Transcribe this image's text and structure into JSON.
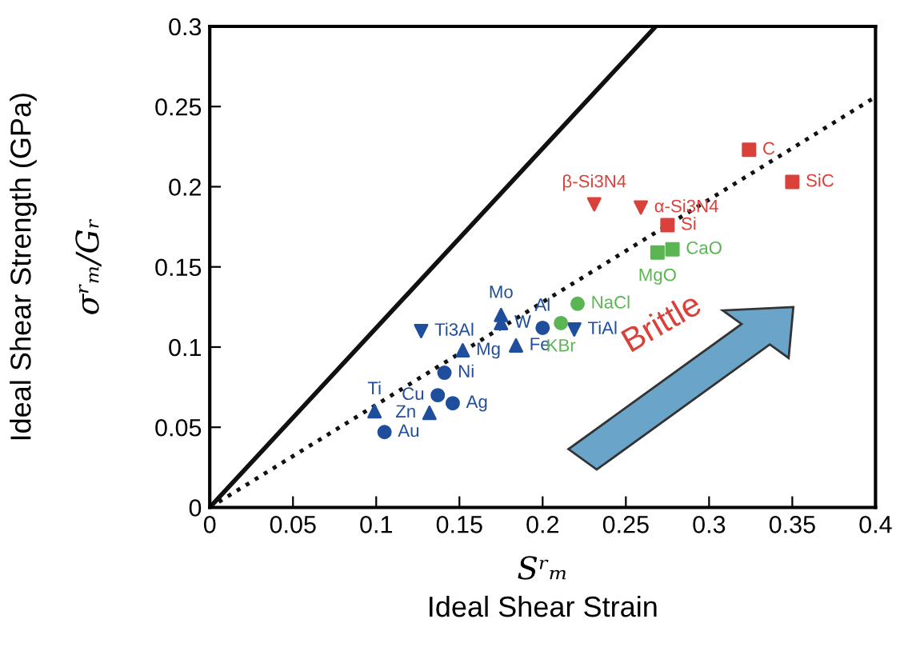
{
  "chart_data": {
    "type": "scatter",
    "xlabel": "Ideal Shear Strain",
    "ylabel": "Ideal Shear Strength (GPa)",
    "xlim": [
      0,
      0.4
    ],
    "ylim": [
      0,
      0.3
    ],
    "xticks": [
      0,
      0.05,
      0.1,
      0.15,
      0.2,
      0.25,
      0.3,
      0.35,
      0.4
    ],
    "yticks": [
      0,
      0.05,
      0.1,
      0.15,
      0.2,
      0.25,
      0.3
    ],
    "grid": false,
    "series": [
      {
        "type": "line",
        "color": "#111111",
        "line_style": "solid",
        "marker": "none",
        "x": [
          0,
          0.268
        ],
        "values": [
          0,
          0.3
        ]
      },
      {
        "type": "line",
        "color": "#111111",
        "line_style": "dotted",
        "marker": "none",
        "x": [
          0,
          0.4
        ],
        "values": [
          0,
          0.256
        ]
      },
      {
        "color": "#1f4e9c",
        "marker": "circle",
        "x": [
          0.105,
          0.137,
          0.146,
          0.141,
          0.2
        ],
        "values": [
          0.047,
          0.07,
          0.065,
          0.084,
          0.112
        ]
      },
      {
        "color": "#1f4e9c",
        "marker": "triangle",
        "x": [
          0.099,
          0.132,
          0.152,
          0.175,
          0.175
        ],
        "values": [
          0.06,
          0.059,
          0.098,
          0.12,
          0.115
        ]
      },
      {
        "color": "#1f4e9c",
        "marker": "triangle",
        "x": [
          0.184
        ],
        "values": [
          0.101
        ]
      },
      {
        "color": "#1f4e9c",
        "marker": "triangle_down",
        "x": [
          0.127,
          0.219
        ],
        "values": [
          0.11,
          0.111
        ]
      },
      {
        "color": "#5ab552",
        "marker": "circle",
        "x": [
          0.211,
          0.221
        ],
        "values": [
          0.115,
          0.127
        ]
      },
      {
        "color": "#5ab552",
        "marker": "square",
        "x": [
          0.269,
          0.278
        ],
        "values": [
          0.159,
          0.161
        ]
      },
      {
        "color": "#d9413a",
        "marker": "square",
        "x": [
          0.275,
          0.324,
          0.35
        ],
        "values": [
          0.176,
          0.223,
          0.203
        ]
      },
      {
        "color": "#d9413a",
        "marker": "triangle_down",
        "x": [
          0.231,
          0.259
        ],
        "values": [
          0.189,
          0.187
        ]
      }
    ],
    "annotations": [
      {
        "text": "Au",
        "x": 0.105,
        "y": 0.047
      },
      {
        "text": "Cu",
        "x": 0.137,
        "y": 0.07
      },
      {
        "text": "Ag",
        "x": 0.146,
        "y": 0.065
      },
      {
        "text": "Ni",
        "x": 0.141,
        "y": 0.084
      },
      {
        "text": "Al",
        "x": 0.2,
        "y": 0.112
      },
      {
        "text": "Ti",
        "x": 0.099,
        "y": 0.06
      },
      {
        "text": "Zn",
        "x": 0.132,
        "y": 0.059
      },
      {
        "text": "Mg",
        "x": 0.152,
        "y": 0.098
      },
      {
        "text": "Mo",
        "x": 0.175,
        "y": 0.12
      },
      {
        "text": "W",
        "x": 0.175,
        "y": 0.115
      },
      {
        "text": "Fe",
        "x": 0.184,
        "y": 0.101
      },
      {
        "text": "Ti3Al",
        "x": 0.127,
        "y": 0.11
      },
      {
        "text": "TiAl",
        "x": 0.219,
        "y": 0.111
      },
      {
        "text": "KBr",
        "x": 0.211,
        "y": 0.115
      },
      {
        "text": "NaCl",
        "x": 0.221,
        "y": 0.127
      },
      {
        "text": "MgO",
        "x": 0.269,
        "y": 0.159
      },
      {
        "text": "CaO",
        "x": 0.278,
        "y": 0.161
      },
      {
        "text": "Si",
        "x": 0.275,
        "y": 0.176
      },
      {
        "text": "C",
        "x": 0.324,
        "y": 0.223
      },
      {
        "text": "SiC",
        "x": 0.35,
        "y": 0.203
      },
      {
        "text": "β-Si3N4",
        "x": 0.231,
        "y": 0.189
      },
      {
        "text": "α-Si3N4",
        "x": 0.259,
        "y": 0.187
      },
      "Brittle",
      "Sʳₘ",
      "σʳₘ/Gᵣ"
    ]
  }
}
